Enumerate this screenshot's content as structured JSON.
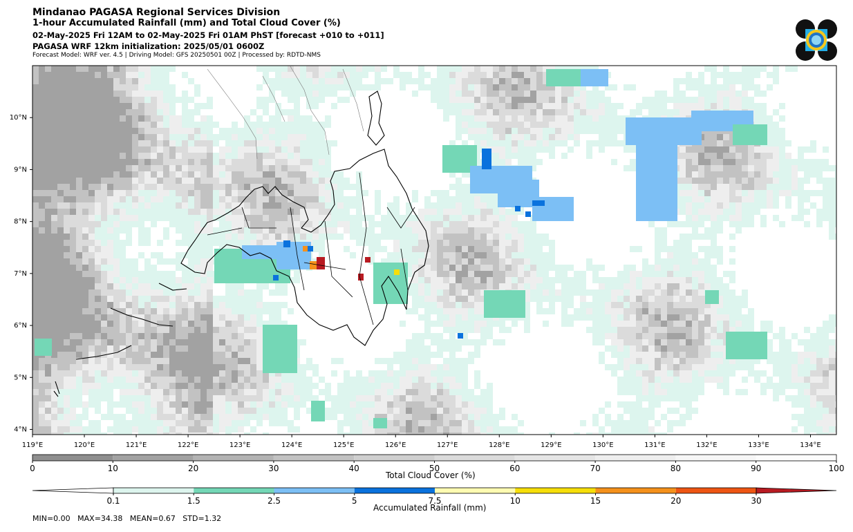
{
  "header": {
    "title": "Mindanao PAGASA Regional Services Division",
    "subtitle": "1-hour Accumulated Rainfall (mm) and Total Cloud Cover (%)",
    "valid_time": "02-May-2025 Fri 12AM to 02-May-2025 Fri 01AM PhST [forecast +010 to +011]",
    "init": "PAGASA WRF 12km initialization: 2025/05/01 0600Z",
    "meta": "Forecast Model: WRF ver. 4.5 | Driving Model: GFS 20250501 00Z | Processed by: RDTD-NMS"
  },
  "map": {
    "lon_range": [
      119,
      134.5
    ],
    "lat_range": [
      3.9,
      11.0
    ],
    "lon_ticks": [
      "119°E",
      "120°E",
      "121°E",
      "122°E",
      "123°E",
      "124°E",
      "125°E",
      "126°E",
      "127°E",
      "128°E",
      "129°E",
      "130°E",
      "131°E",
      "132°E",
      "133°E",
      "134°E"
    ],
    "lat_ticks": [
      "4°N",
      "5°N",
      "6°N",
      "7°N",
      "8°N",
      "9°N",
      "10°N"
    ]
  },
  "cloud_colorbar": {
    "title": "Total Cloud Cover (%)",
    "ticks": [
      "0",
      "10",
      "20",
      "30",
      "40",
      "50",
      "60",
      "70",
      "80",
      "90",
      "100"
    ],
    "colors": [
      "#8f8f8f",
      "#a2a2a2",
      "#b3b3b3",
      "#c2c2c2",
      "#cfcfcf",
      "#dbdbdb",
      "#e5e5e5",
      "#eeeeee",
      "#f6f6f6",
      "#fcfcfc"
    ]
  },
  "rain_colorbar": {
    "title": "Accumulated Rainfall (mm)",
    "ticks": [
      "0.1",
      "1.5",
      "2.5",
      "5",
      "7.5",
      "10",
      "15",
      "20",
      "30"
    ],
    "colors": [
      "#ffffff",
      "#ddf5ee",
      "#74d7b6",
      "#7cbff5",
      "#0a72dd",
      "#fffcb2",
      "#f6de09",
      "#f5911b",
      "#ee5513",
      "#b81b22"
    ]
  },
  "stats": "MIN=0.00   MAX=34.38   MEAN=0.67   STD=1.32"
}
